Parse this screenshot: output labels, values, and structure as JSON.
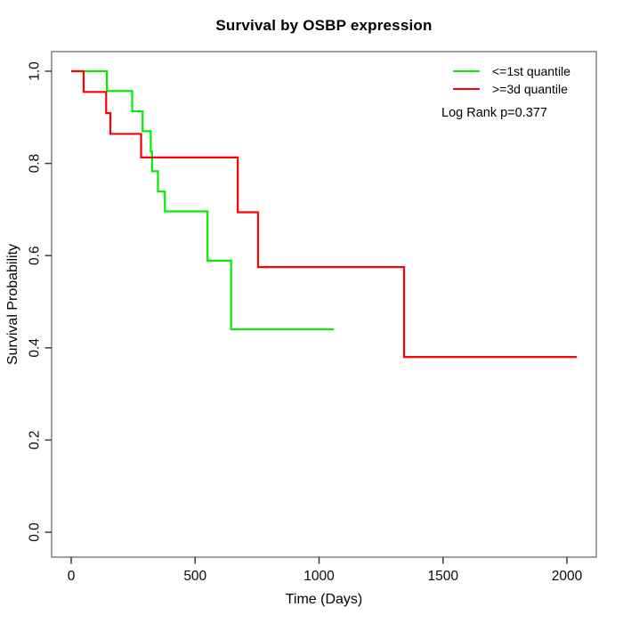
{
  "chart_data": {
    "type": "line",
    "subtype": "kaplan-meier-step",
    "title": "Survival by OSBP expression",
    "xlabel": "Time (Days)",
    "ylabel": "Survival Probability",
    "annotation": "Log Rank p=0.377",
    "p_value": 0.377,
    "xlim": [
      0,
      2130
    ],
    "ylim": [
      0.0,
      1.0
    ],
    "x_ticks": [
      0,
      500,
      1000,
      1500,
      2000
    ],
    "y_ticks": [
      0.0,
      0.2,
      0.4,
      0.6,
      0.8,
      1.0
    ],
    "grid": false,
    "legend_position": "top-right",
    "axis_color": "#3a3a3a",
    "box_color": "#8a8a8a",
    "series": [
      {
        "id": "green",
        "name": "<=1st quantile",
        "color": "#00ee00",
        "steps": [
          [
            0,
            1.0
          ],
          [
            144,
            0.957
          ],
          [
            246,
            0.913
          ],
          [
            288,
            0.87
          ],
          [
            321,
            0.826
          ],
          [
            326,
            0.783
          ],
          [
            350,
            0.739
          ],
          [
            378,
            0.696
          ],
          [
            550,
            0.589
          ],
          [
            645,
            0.44
          ]
        ],
        "end_time": 1060
      },
      {
        "id": "red",
        "name": ">=3d quantile",
        "color": "#ff0000",
        "steps": [
          [
            0,
            1.0
          ],
          [
            50,
            0.955
          ],
          [
            141,
            0.909
          ],
          [
            158,
            0.864
          ],
          [
            282,
            0.813
          ],
          [
            672,
            0.694
          ],
          [
            754,
            0.575
          ],
          [
            1343,
            0.38
          ]
        ],
        "end_time": 2040
      }
    ]
  }
}
